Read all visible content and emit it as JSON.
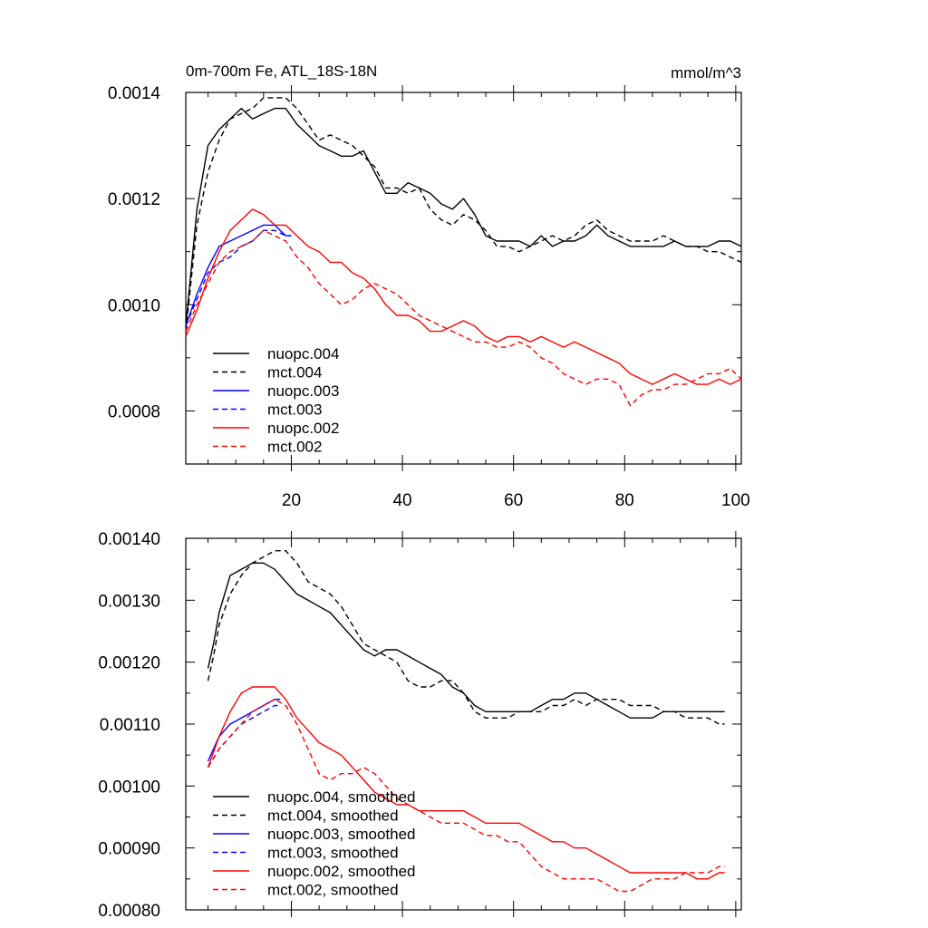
{
  "chart_data": [
    {
      "type": "line",
      "title": "0m-700m Fe, ATL_18S-18N",
      "units": "mmol/m^3",
      "xlim": [
        1,
        101
      ],
      "ylim": [
        0.0007,
        0.0014
      ],
      "x_ticks": [
        20,
        40,
        60,
        80,
        100
      ],
      "y_ticks": [
        0.0008,
        0.001,
        0.0012,
        0.0014
      ],
      "y_tick_labels": [
        "0.0008",
        "0.0010",
        "0.0012",
        "0.0014"
      ],
      "legend_location": "lower-left",
      "series": [
        {
          "name": "nuopc.004",
          "color": "#000000",
          "dash": "solid",
          "x": [
            1,
            3,
            5,
            7,
            9,
            11,
            13,
            15,
            17,
            19,
            21,
            23,
            25,
            27,
            29,
            31,
            33,
            35,
            37,
            39,
            41,
            43,
            45,
            47,
            49,
            51,
            53,
            55,
            57,
            59,
            61,
            63,
            65,
            67,
            69,
            71,
            73,
            75,
            77,
            79,
            81,
            83,
            85,
            87,
            89,
            91,
            93,
            95,
            97,
            99,
            101
          ],
          "y": [
            0.00096,
            0.00118,
            0.0013,
            0.00133,
            0.00135,
            0.00137,
            0.00135,
            0.00136,
            0.00137,
            0.00137,
            0.00134,
            0.00132,
            0.0013,
            0.00129,
            0.00128,
            0.00128,
            0.00129,
            0.00125,
            0.00121,
            0.00121,
            0.00123,
            0.00122,
            0.00121,
            0.00119,
            0.00118,
            0.0012,
            0.00117,
            0.00113,
            0.00112,
            0.00112,
            0.00112,
            0.00111,
            0.00113,
            0.00111,
            0.00112,
            0.00112,
            0.00113,
            0.00115,
            0.00113,
            0.00112,
            0.00111,
            0.00111,
            0.00111,
            0.00111,
            0.00112,
            0.00111,
            0.00111,
            0.00111,
            0.00112,
            0.00112,
            0.00111
          ]
        },
        {
          "name": "mct.004",
          "color": "#000000",
          "dash": "dashed",
          "x": [
            1,
            3,
            5,
            7,
            9,
            11,
            13,
            15,
            17,
            19,
            21,
            23,
            25,
            27,
            29,
            31,
            33,
            35,
            37,
            39,
            41,
            43,
            45,
            47,
            49,
            51,
            53,
            55,
            57,
            59,
            61,
            63,
            65,
            67,
            69,
            71,
            73,
            75,
            77,
            79,
            81,
            83,
            85,
            87,
            89,
            91,
            93,
            95,
            97,
            99,
            101
          ],
          "y": [
            0.00095,
            0.00115,
            0.00125,
            0.00131,
            0.00135,
            0.00136,
            0.00137,
            0.00139,
            0.00139,
            0.00139,
            0.00137,
            0.00134,
            0.00131,
            0.00132,
            0.00131,
            0.0013,
            0.00128,
            0.00126,
            0.00122,
            0.00122,
            0.00121,
            0.00122,
            0.00118,
            0.00116,
            0.00115,
            0.00117,
            0.00116,
            0.00114,
            0.00111,
            0.00111,
            0.0011,
            0.00111,
            0.00112,
            0.00113,
            0.00112,
            0.00113,
            0.00115,
            0.00116,
            0.00114,
            0.00113,
            0.00112,
            0.00112,
            0.00112,
            0.00113,
            0.00112,
            0.00111,
            0.00111,
            0.0011,
            0.0011,
            0.00109,
            0.00108
          ]
        },
        {
          "name": "nuopc.003",
          "color": "#0000ff",
          "dash": "solid",
          "x": [
            1,
            3,
            5,
            7,
            9,
            11,
            13,
            15,
            17,
            19,
            20
          ],
          "y": [
            0.00096,
            0.00102,
            0.00107,
            0.00111,
            0.00112,
            0.00113,
            0.00114,
            0.00115,
            0.00115,
            0.00113,
            0.00113
          ]
        },
        {
          "name": "mct.003",
          "color": "#0000ff",
          "dash": "dashed",
          "x": [
            1,
            3,
            5,
            7,
            9,
            11,
            13,
            15,
            17,
            19,
            20
          ],
          "y": [
            0.00096,
            0.00101,
            0.00106,
            0.00108,
            0.00109,
            0.00111,
            0.00112,
            0.00114,
            0.00114,
            0.00113,
            0.00113
          ]
        },
        {
          "name": "nuopc.002",
          "color": "#ff0000",
          "dash": "solid",
          "x": [
            1,
            3,
            5,
            7,
            9,
            11,
            13,
            15,
            17,
            19,
            21,
            23,
            25,
            27,
            29,
            31,
            33,
            35,
            37,
            39,
            41,
            43,
            45,
            47,
            49,
            51,
            53,
            55,
            57,
            59,
            61,
            63,
            65,
            67,
            69,
            71,
            73,
            75,
            77,
            79,
            81,
            83,
            85,
            87,
            89,
            91,
            93,
            95,
            97,
            99,
            101
          ],
          "y": [
            0.00094,
            0.00099,
            0.00105,
            0.0011,
            0.00114,
            0.00116,
            0.00118,
            0.00117,
            0.00115,
            0.00115,
            0.00113,
            0.00111,
            0.0011,
            0.00108,
            0.00108,
            0.00106,
            0.00105,
            0.00103,
            0.001,
            0.00098,
            0.00098,
            0.00097,
            0.00095,
            0.00095,
            0.00096,
            0.00097,
            0.00096,
            0.00094,
            0.00093,
            0.00094,
            0.00094,
            0.00093,
            0.00094,
            0.00093,
            0.00092,
            0.00093,
            0.00092,
            0.00091,
            0.0009,
            0.00089,
            0.00087,
            0.00086,
            0.00085,
            0.00086,
            0.00087,
            0.00086,
            0.00085,
            0.00085,
            0.00086,
            0.00085,
            0.00086
          ]
        },
        {
          "name": "mct.002",
          "color": "#ff0000",
          "dash": "dashed",
          "x": [
            1,
            3,
            5,
            7,
            9,
            11,
            13,
            15,
            17,
            19,
            21,
            23,
            25,
            27,
            29,
            31,
            33,
            35,
            37,
            39,
            41,
            43,
            45,
            47,
            49,
            51,
            53,
            55,
            57,
            59,
            61,
            63,
            65,
            67,
            69,
            71,
            73,
            75,
            77,
            79,
            81,
            83,
            85,
            87,
            89,
            91,
            93,
            95,
            97,
            99,
            101
          ],
          "y": [
            0.00095,
            0.001,
            0.00104,
            0.00108,
            0.0011,
            0.00111,
            0.00112,
            0.00114,
            0.00113,
            0.00112,
            0.00109,
            0.00107,
            0.00104,
            0.00102,
            0.001,
            0.00101,
            0.00103,
            0.00104,
            0.00103,
            0.00102,
            0.001,
            0.00098,
            0.00097,
            0.00096,
            0.00095,
            0.00094,
            0.00093,
            0.00093,
            0.00092,
            0.00092,
            0.00093,
            0.00092,
            0.0009,
            0.00089,
            0.00087,
            0.00086,
            0.00085,
            0.00086,
            0.00086,
            0.00085,
            0.00081,
            0.00083,
            0.00084,
            0.00084,
            0.00085,
            0.00085,
            0.00086,
            0.00087,
            0.00087,
            0.00088,
            0.00086
          ]
        }
      ]
    },
    {
      "type": "line",
      "title": "",
      "units": "",
      "xlim": [
        1,
        101
      ],
      "ylim": [
        0.0008,
        0.0014
      ],
      "x_ticks": [
        20,
        40,
        60,
        80,
        100
      ],
      "y_ticks": [
        0.0008,
        0.0009,
        0.001,
        0.0011,
        0.0012,
        0.0013,
        0.0014
      ],
      "y_tick_labels": [
        "0.00080",
        "0.00090",
        "0.00100",
        "0.00110",
        "0.00120",
        "0.00130",
        "0.00140"
      ],
      "legend_location": "lower-left",
      "series": [
        {
          "name": "nuopc.004, smoothed",
          "color": "#000000",
          "dash": "solid",
          "x": [
            5,
            6,
            7,
            9,
            11,
            13,
            15,
            17,
            19,
            21,
            23,
            25,
            27,
            29,
            31,
            33,
            35,
            37,
            39,
            41,
            43,
            45,
            47,
            49,
            51,
            53,
            55,
            57,
            59,
            61,
            63,
            65,
            67,
            69,
            71,
            73,
            75,
            77,
            79,
            81,
            83,
            85,
            87,
            89,
            91,
            93,
            95,
            97,
            98
          ],
          "y": [
            0.00119,
            0.00123,
            0.00128,
            0.00134,
            0.00135,
            0.00136,
            0.00136,
            0.00135,
            0.00133,
            0.00131,
            0.0013,
            0.00129,
            0.00128,
            0.00126,
            0.00124,
            0.00122,
            0.00121,
            0.00122,
            0.00122,
            0.00121,
            0.0012,
            0.00119,
            0.00118,
            0.00116,
            0.00115,
            0.00113,
            0.00112,
            0.00112,
            0.00112,
            0.00112,
            0.00112,
            0.00113,
            0.00114,
            0.00114,
            0.00115,
            0.00115,
            0.00114,
            0.00113,
            0.00112,
            0.00111,
            0.00111,
            0.00111,
            0.00112,
            0.00112,
            0.00112,
            0.00112,
            0.00112,
            0.00112,
            0.00112
          ]
        },
        {
          "name": "mct.004, smoothed",
          "color": "#000000",
          "dash": "dashed",
          "x": [
            5,
            6,
            7,
            9,
            11,
            13,
            15,
            17,
            19,
            21,
            23,
            25,
            27,
            29,
            31,
            33,
            35,
            37,
            39,
            41,
            43,
            45,
            47,
            49,
            51,
            53,
            55,
            57,
            59,
            61,
            63,
            65,
            67,
            69,
            71,
            73,
            75,
            77,
            79,
            81,
            83,
            85,
            87,
            89,
            91,
            93,
            95,
            97,
            98
          ],
          "y": [
            0.00117,
            0.00121,
            0.00126,
            0.00131,
            0.00134,
            0.00136,
            0.00137,
            0.00138,
            0.00138,
            0.00136,
            0.00133,
            0.00132,
            0.00131,
            0.00129,
            0.00126,
            0.00123,
            0.00122,
            0.00121,
            0.0012,
            0.00117,
            0.00116,
            0.00116,
            0.00117,
            0.00117,
            0.00115,
            0.00112,
            0.00111,
            0.00111,
            0.00111,
            0.00112,
            0.00112,
            0.00112,
            0.00113,
            0.00113,
            0.00114,
            0.00113,
            0.00114,
            0.00114,
            0.00114,
            0.00113,
            0.00113,
            0.00113,
            0.00112,
            0.00112,
            0.00111,
            0.00111,
            0.00111,
            0.0011,
            0.0011
          ]
        },
        {
          "name": "nuopc.003, smoothed",
          "color": "#0000ff",
          "dash": "solid",
          "x": [
            5,
            7,
            9,
            11,
            13,
            15,
            17,
            18
          ],
          "y": [
            0.00104,
            0.00108,
            0.0011,
            0.00111,
            0.00112,
            0.00113,
            0.00114,
            0.00114
          ]
        },
        {
          "name": "mct.003, smoothed",
          "color": "#0000ff",
          "dash": "dashed",
          "x": [
            5,
            7,
            9,
            11,
            13,
            15,
            17,
            18
          ],
          "y": [
            0.00103,
            0.00106,
            0.00108,
            0.0011,
            0.00111,
            0.00112,
            0.00113,
            0.00113
          ]
        },
        {
          "name": "nuopc.002, smoothed",
          "color": "#ff0000",
          "dash": "solid",
          "x": [
            5,
            7,
            9,
            11,
            13,
            15,
            17,
            19,
            21,
            23,
            25,
            27,
            29,
            31,
            33,
            35,
            37,
            39,
            41,
            43,
            45,
            47,
            49,
            51,
            53,
            55,
            57,
            59,
            61,
            63,
            65,
            67,
            69,
            71,
            73,
            75,
            77,
            79,
            81,
            83,
            85,
            87,
            89,
            91,
            93,
            95,
            97,
            98
          ],
          "y": [
            0.00103,
            0.00108,
            0.00112,
            0.00115,
            0.00116,
            0.00116,
            0.00116,
            0.00114,
            0.00111,
            0.00109,
            0.00107,
            0.00106,
            0.00105,
            0.00103,
            0.00101,
            0.00099,
            0.00098,
            0.00097,
            0.00097,
            0.00096,
            0.00096,
            0.00096,
            0.00096,
            0.00096,
            0.00095,
            0.00094,
            0.00094,
            0.00094,
            0.00094,
            0.00093,
            0.00092,
            0.00091,
            0.00091,
            0.0009,
            0.0009,
            0.00089,
            0.00088,
            0.00087,
            0.00086,
            0.00086,
            0.00086,
            0.00086,
            0.00086,
            0.00086,
            0.00085,
            0.00085,
            0.00086,
            0.00086
          ]
        },
        {
          "name": "mct.002, smoothed",
          "color": "#ff0000",
          "dash": "dashed",
          "x": [
            5,
            7,
            9,
            11,
            13,
            15,
            17,
            19,
            21,
            23,
            25,
            27,
            29,
            31,
            33,
            35,
            37,
            39,
            41,
            43,
            45,
            47,
            49,
            51,
            53,
            55,
            57,
            59,
            61,
            63,
            65,
            67,
            69,
            71,
            73,
            75,
            77,
            79,
            81,
            83,
            85,
            87,
            89,
            91,
            93,
            95,
            97,
            98
          ],
          "y": [
            0.00103,
            0.00106,
            0.00108,
            0.0011,
            0.00112,
            0.00113,
            0.00114,
            0.00113,
            0.0011,
            0.00106,
            0.00102,
            0.00101,
            0.00102,
            0.00102,
            0.00103,
            0.00102,
            0.001,
            0.00098,
            0.00097,
            0.00096,
            0.00095,
            0.00094,
            0.00094,
            0.00094,
            0.00093,
            0.00092,
            0.00092,
            0.00091,
            0.00091,
            0.00089,
            0.00087,
            0.00086,
            0.00085,
            0.00085,
            0.00085,
            0.00085,
            0.00084,
            0.00083,
            0.00083,
            0.00084,
            0.00085,
            0.00085,
            0.00085,
            0.00086,
            0.00086,
            0.00086,
            0.00087,
            0.00087
          ]
        }
      ]
    }
  ]
}
